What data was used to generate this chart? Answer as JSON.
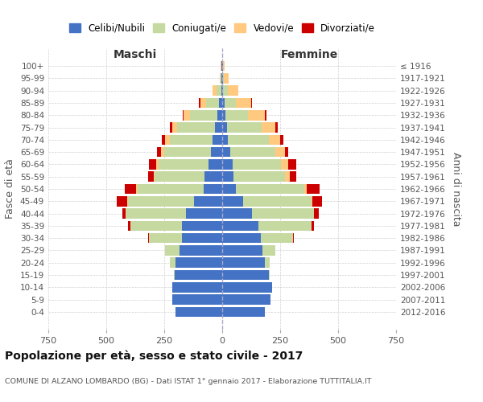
{
  "age_groups": [
    "0-4",
    "5-9",
    "10-14",
    "15-19",
    "20-24",
    "25-29",
    "30-34",
    "35-39",
    "40-44",
    "45-49",
    "50-54",
    "55-59",
    "60-64",
    "65-69",
    "70-74",
    "75-79",
    "80-84",
    "85-89",
    "90-94",
    "95-99",
    "100+"
  ],
  "birth_years": [
    "2012-2016",
    "2007-2011",
    "2002-2006",
    "1997-2001",
    "1992-1996",
    "1987-1991",
    "1982-1986",
    "1977-1981",
    "1972-1976",
    "1967-1971",
    "1962-1966",
    "1957-1961",
    "1952-1956",
    "1947-1951",
    "1942-1946",
    "1937-1941",
    "1932-1936",
    "1927-1931",
    "1922-1926",
    "1917-1921",
    "≤ 1916"
  ],
  "colors": {
    "celibi": "#4472c4",
    "coniugati": "#c5d9a0",
    "vedovi": "#ffc97f",
    "divorziati": "#cc0000"
  },
  "maschi": {
    "celibi": [
      200,
      215,
      215,
      205,
      200,
      185,
      175,
      175,
      155,
      120,
      80,
      75,
      60,
      50,
      40,
      30,
      20,
      15,
      5,
      2,
      2
    ],
    "coniugati": [
      0,
      0,
      0,
      5,
      25,
      60,
      140,
      220,
      260,
      285,
      285,
      215,
      215,
      200,
      185,
      165,
      120,
      55,
      20,
      5,
      2
    ],
    "vedovi": [
      0,
      0,
      0,
      0,
      0,
      0,
      0,
      0,
      0,
      5,
      5,
      5,
      10,
      15,
      20,
      20,
      25,
      25,
      15,
      5,
      2
    ],
    "divorziati": [
      0,
      0,
      0,
      0,
      0,
      0,
      5,
      10,
      15,
      45,
      50,
      25,
      30,
      15,
      15,
      10,
      5,
      5,
      0,
      0,
      0
    ]
  },
  "femmine": {
    "celibi": [
      185,
      210,
      215,
      200,
      185,
      175,
      165,
      155,
      130,
      90,
      60,
      50,
      45,
      35,
      25,
      20,
      15,
      10,
      5,
      2,
      2
    ],
    "coniugati": [
      0,
      0,
      0,
      5,
      20,
      55,
      140,
      230,
      265,
      295,
      295,
      220,
      210,
      195,
      175,
      150,
      95,
      50,
      20,
      5,
      2
    ],
    "vedovi": [
      0,
      0,
      0,
      0,
      0,
      0,
      0,
      0,
      0,
      5,
      10,
      20,
      30,
      40,
      50,
      60,
      75,
      65,
      45,
      20,
      5
    ],
    "divorziati": [
      0,
      0,
      0,
      0,
      0,
      0,
      5,
      10,
      20,
      40,
      55,
      30,
      35,
      15,
      15,
      10,
      5,
      5,
      0,
      0,
      0
    ]
  },
  "title": "Popolazione per età, sesso e stato civile - 2017",
  "subtitle": "COMUNE DI ALZANO LOMBARDO (BG) - Dati ISTAT 1° gennaio 2017 - Elaborazione TUTTITALIA.IT",
  "xlabel_maschi": "Maschi",
  "xlabel_femmine": "Femmine",
  "ylabel_left": "Fasce di età",
  "ylabel_right": "Anni di nascita",
  "xlim": 750,
  "background_color": "#ffffff",
  "grid_color": "#cccccc",
  "legend_labels": [
    "Celibi/Nubili",
    "Coniugati/e",
    "Vedovi/e",
    "Divorziati/e"
  ]
}
